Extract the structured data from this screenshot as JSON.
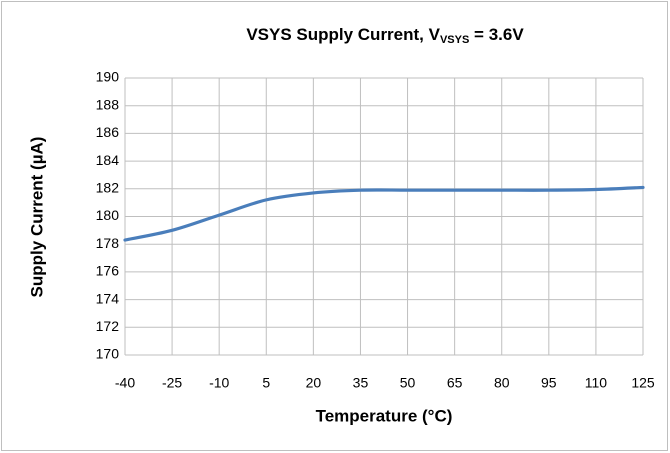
{
  "chart_data": {
    "type": "line",
    "title": "VSYS Supply Current, V",
    "title_subscript": "VSYS",
    "title_suffix": " = 3.6V",
    "x_label": "Temperature (°C)",
    "y_label": "Supply Current (µA)",
    "x": [
      -40,
      -25,
      -10,
      5,
      20,
      35,
      50,
      65,
      80,
      95,
      110,
      125
    ],
    "series": [
      {
        "name": "VSYS",
        "color": "#4a7ebb",
        "values": [
          178.3,
          179.0,
          180.1,
          181.2,
          181.7,
          181.9,
          181.9,
          181.9,
          181.9,
          181.9,
          181.95,
          182.1
        ]
      }
    ],
    "xlim": [
      -40,
      125
    ],
    "xticks": [
      -40,
      -25,
      -10,
      5,
      20,
      35,
      50,
      65,
      80,
      95,
      110,
      125
    ],
    "ylim": [
      170,
      190
    ],
    "yticks": [
      170,
      172,
      174,
      176,
      178,
      180,
      182,
      184,
      186,
      188,
      190
    ],
    "grid": true
  }
}
